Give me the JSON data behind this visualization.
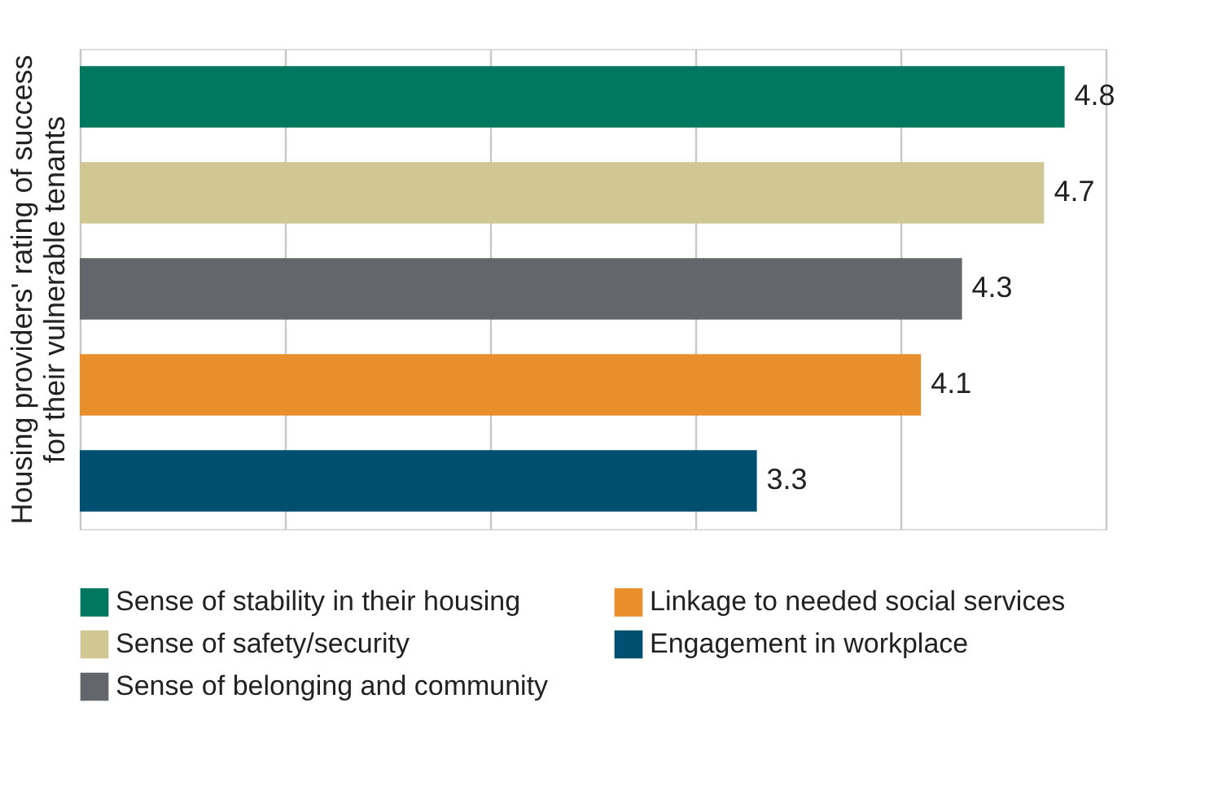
{
  "chart_data": {
    "type": "bar",
    "orientation": "horizontal",
    "stacked": true,
    "ylabel": "Housing providers' rating of success for their vulnerable tenants",
    "categories": [
      null,
      null,
      null,
      null,
      null
    ],
    "series": [
      {
        "name": "Sense of stability in their housing",
        "color": "#00775f",
        "values": [
          4.8,
          0,
          0,
          0,
          0
        ],
        "value_labels": [
          "4.8",
          null,
          null,
          null,
          null
        ]
      },
      {
        "name": "Sense of safety/security",
        "color": "#d1c795",
        "values": [
          0,
          4.7,
          0,
          0,
          0
        ],
        "value_labels": [
          null,
          "4.7",
          null,
          null,
          null
        ]
      },
      {
        "name": "Sense of belonging and community",
        "color": "#63666a",
        "values": [
          0,
          0,
          4.3,
          0,
          0
        ],
        "value_labels": [
          null,
          null,
          "4.3",
          null,
          null
        ]
      },
      {
        "name": "Linkage to needed social services",
        "color": "#e88e2a",
        "values": [
          0,
          0,
          0,
          4.1,
          0
        ],
        "value_labels": [
          null,
          null,
          null,
          "4.1",
          null
        ]
      },
      {
        "name": "Engagement in workplace",
        "color": "#004f71",
        "values": [
          0,
          0,
          0,
          0,
          3.3
        ],
        "value_labels": [
          null,
          null,
          null,
          null,
          "3.3"
        ]
      }
    ],
    "tick_labels": false,
    "grid": "x",
    "legend": "bottom"
  }
}
